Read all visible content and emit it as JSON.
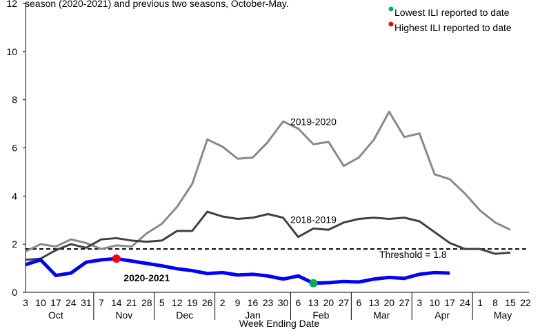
{
  "chart_data": {
    "type": "line",
    "title": "season (2020-2021) and previous two seasons, October-May.",
    "x_label": "Week Ending Date",
    "groups": [
      {
        "name": "Oct",
        "categories": [
          "3",
          "10",
          "17",
          "24",
          "31"
        ]
      },
      {
        "name": "Nov",
        "categories": [
          "7",
          "14",
          "21",
          "28"
        ]
      },
      {
        "name": "Dec",
        "categories": [
          "5",
          "12",
          "19",
          "26"
        ]
      },
      {
        "name": "Jan",
        "categories": [
          "2",
          "9",
          "16",
          "23",
          "30"
        ]
      },
      {
        "name": "Feb",
        "categories": [
          "6",
          "13",
          "20",
          "27"
        ]
      },
      {
        "name": "Mar",
        "categories": [
          "6",
          "13",
          "20",
          "27"
        ]
      },
      {
        "name": "Apr",
        "categories": [
          "3",
          "10",
          "17",
          "24"
        ]
      },
      {
        "name": "May",
        "categories": [
          "1",
          "8",
          "15",
          "22"
        ]
      }
    ],
    "series": [
      {
        "name": "2019-2020",
        "color": "#898989",
        "width": 3,
        "values": [
          1.7,
          2.0,
          1.9,
          2.2,
          2.05,
          1.8,
          1.95,
          1.9,
          2.45,
          2.85,
          3.55,
          4.5,
          6.35,
          6.05,
          5.55,
          5.6,
          6.25,
          7.1,
          6.8,
          6.15,
          6.25,
          5.25,
          5.6,
          6.35,
          7.5,
          6.45,
          6.6,
          4.9,
          4.7,
          4.1,
          3.4,
          2.9,
          2.6,
          null
        ]
      },
      {
        "name": "2018-2019",
        "color": "#404040",
        "width": 3,
        "values": [
          1.35,
          1.4,
          1.75,
          2.0,
          1.85,
          2.2,
          2.25,
          2.15,
          2.1,
          2.15,
          2.55,
          2.55,
          3.35,
          3.15,
          3.05,
          3.1,
          3.25,
          3.1,
          2.3,
          2.65,
          2.6,
          2.9,
          3.05,
          3.1,
          3.05,
          3.1,
          2.95,
          2.5,
          2.05,
          1.8,
          1.8,
          1.6,
          1.65,
          null
        ]
      },
      {
        "name": "2020-2021",
        "color": "#0000ff",
        "width": 5,
        "values": [
          1.15,
          1.35,
          0.7,
          0.8,
          1.25,
          1.35,
          1.4,
          1.3,
          1.2,
          1.1,
          0.98,
          0.9,
          0.78,
          0.82,
          0.72,
          0.75,
          0.68,
          0.55,
          0.68,
          0.38,
          0.4,
          0.45,
          0.43,
          0.55,
          0.62,
          0.58,
          0.75,
          0.82,
          0.8,
          null,
          null,
          null,
          null,
          null
        ]
      }
    ],
    "highlights": [
      {
        "name": "Lowest ILI reported to date",
        "color": "#00b050",
        "series": 2,
        "index": 19
      },
      {
        "name": "Highest ILI reported to date",
        "color": "#ff0000",
        "series": 2,
        "index": 6
      }
    ],
    "threshold": {
      "value": 1.8,
      "label": "Threshold = 1.8"
    },
    "ylim": [
      0,
      12
    ],
    "yticks": [
      0,
      2,
      4,
      6,
      8,
      10,
      12
    ]
  }
}
